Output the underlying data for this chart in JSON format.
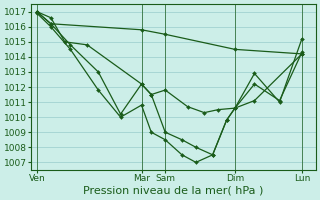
{
  "bg_color": "#cceee8",
  "grid_color": "#99cccc",
  "line_color": "#1a5c1a",
  "ylim": [
    1006.5,
    1017.5
  ],
  "yticks": [
    1007,
    1008,
    1009,
    1010,
    1011,
    1012,
    1013,
    1014,
    1015,
    1016,
    1017
  ],
  "xlabel": "Pression niveau de la mer( hPa )",
  "xlabel_fontsize": 8,
  "tick_fontsize": 6.5,
  "xtick_labels": [
    "Ven",
    "Mar",
    "Sam",
    "Dim",
    "Lun"
  ],
  "xtick_positions": [
    0.0,
    0.375,
    0.46,
    0.71,
    0.95
  ],
  "vlines": [
    0.0,
    0.375,
    0.46,
    0.71,
    0.95
  ],
  "lines": [
    {
      "x": [
        0.0,
        0.05,
        0.375,
        0.46,
        0.71,
        0.95
      ],
      "y": [
        1017.0,
        1016.2,
        1015.8,
        1015.5,
        1014.5,
        1014.2
      ]
    },
    {
      "x": [
        0.0,
        0.05,
        0.1,
        0.18,
        0.375,
        0.41,
        0.46,
        0.54,
        0.6,
        0.65,
        0.71,
        0.78,
        0.95
      ],
      "y": [
        1017.0,
        1016.6,
        1015.0,
        1014.8,
        1012.2,
        1011.5,
        1011.8,
        1010.7,
        1010.3,
        1010.5,
        1010.6,
        1011.1,
        1014.2
      ]
    },
    {
      "x": [
        0.0,
        0.05,
        0.12,
        0.22,
        0.3,
        0.375,
        0.41,
        0.46,
        0.52,
        0.57,
        0.63,
        0.68,
        0.71,
        0.78,
        0.87,
        0.95
      ],
      "y": [
        1017.0,
        1016.2,
        1014.8,
        1013.0,
        1010.2,
        1012.2,
        1011.5,
        1009.0,
        1008.5,
        1008.0,
        1007.5,
        1009.8,
        1010.6,
        1012.2,
        1011.1,
        1014.3
      ]
    },
    {
      "x": [
        0.0,
        0.05,
        0.12,
        0.22,
        0.3,
        0.375,
        0.41,
        0.46,
        0.52,
        0.57,
        0.63,
        0.68,
        0.71,
        0.78,
        0.87,
        0.95
      ],
      "y": [
        1016.9,
        1016.0,
        1014.5,
        1011.8,
        1010.0,
        1010.8,
        1009.0,
        1008.5,
        1007.5,
        1007.0,
        1007.5,
        1009.8,
        1010.6,
        1012.9,
        1011.0,
        1015.2
      ]
    }
  ],
  "figsize": [
    3.2,
    2.0
  ],
  "dpi": 100
}
